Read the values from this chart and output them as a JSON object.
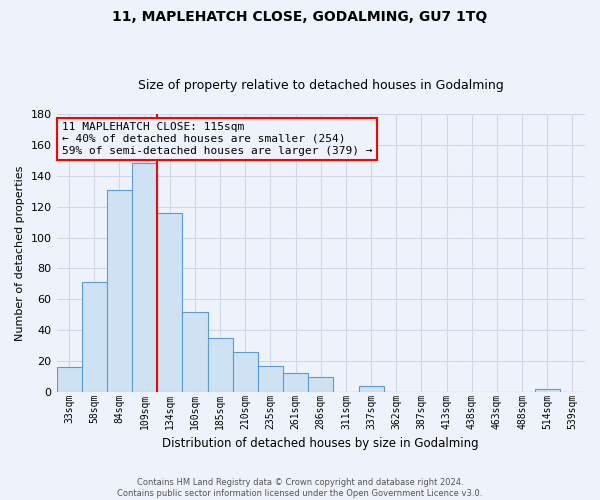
{
  "title": "11, MAPLEHATCH CLOSE, GODALMING, GU7 1TQ",
  "subtitle": "Size of property relative to detached houses in Godalming",
  "xlabel": "Distribution of detached houses by size in Godalming",
  "ylabel": "Number of detached properties",
  "bar_labels": [
    "33sqm",
    "58sqm",
    "84sqm",
    "109sqm",
    "134sqm",
    "160sqm",
    "185sqm",
    "210sqm",
    "235sqm",
    "261sqm",
    "286sqm",
    "311sqm",
    "337sqm",
    "362sqm",
    "387sqm",
    "413sqm",
    "438sqm",
    "463sqm",
    "488sqm",
    "514sqm",
    "539sqm"
  ],
  "bar_values": [
    16,
    71,
    131,
    148,
    116,
    52,
    35,
    26,
    17,
    12,
    10,
    0,
    4,
    0,
    0,
    0,
    0,
    0,
    0,
    2,
    0
  ],
  "bar_color": "#cfe2f3",
  "bar_edge_color": "#5b9bd5",
  "ylim": [
    0,
    180
  ],
  "yticks": [
    0,
    20,
    40,
    60,
    80,
    100,
    120,
    140,
    160,
    180
  ],
  "red_line_x": 3.5,
  "annotation_text": "11 MAPLEHATCH CLOSE: 115sqm\n← 40% of detached houses are smaller (254)\n59% of semi-detached houses are larger (379) →",
  "footer_line1": "Contains HM Land Registry data © Crown copyright and database right 2024.",
  "footer_line2": "Contains public sector information licensed under the Open Government Licence v3.0.",
  "bg_color": "#eef2fa",
  "grid_color": "#d0d8e8",
  "title_fontsize": 10,
  "subtitle_fontsize": 9
}
